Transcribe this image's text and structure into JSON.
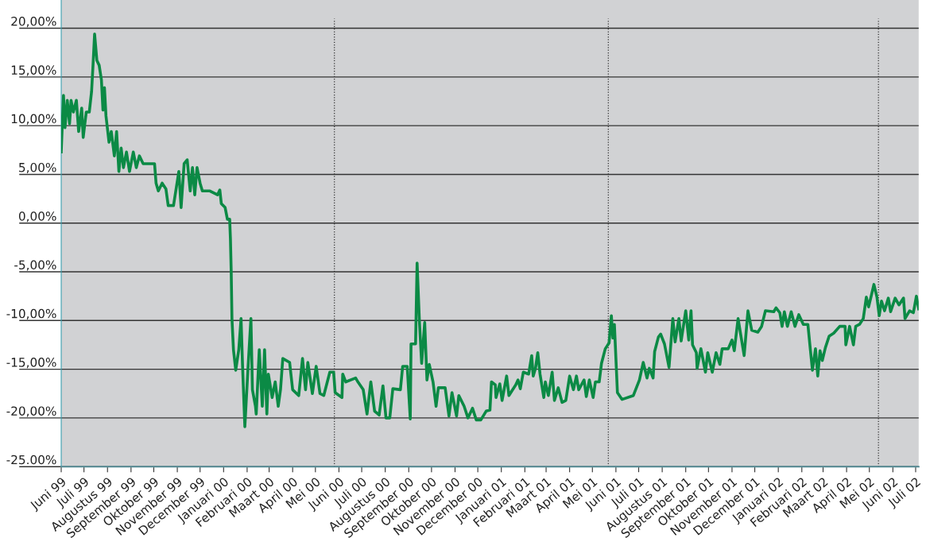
{
  "chart_data": {
    "type": "line",
    "xlim": [
      "1999-06-01",
      "2002-07-05"
    ],
    "ylim": [
      -25,
      22.9
    ],
    "xticks": [
      {
        "value": "1999-06-01",
        "label": "Juni 99"
      },
      {
        "value": "1999-07-01",
        "label": "Juli 99"
      },
      {
        "value": "1999-08-01",
        "label": "Augustus 99"
      },
      {
        "value": "1999-09-01",
        "label": "September 99"
      },
      {
        "value": "1999-10-01",
        "label": "Oktober 99"
      },
      {
        "value": "1999-11-01",
        "label": "November 99"
      },
      {
        "value": "1999-12-01",
        "label": "December 99"
      },
      {
        "value": "2000-01-01",
        "label": "Januari 00"
      },
      {
        "value": "2000-02-01",
        "label": "Februari 00"
      },
      {
        "value": "2000-03-01",
        "label": "Maart 00"
      },
      {
        "value": "2000-04-01",
        "label": "April 00"
      },
      {
        "value": "2000-05-01",
        "label": "Mei 00"
      },
      {
        "value": "2000-06-01",
        "label": "Juni 00"
      },
      {
        "value": "2000-07-01",
        "label": "Juli 00"
      },
      {
        "value": "2000-08-01",
        "label": "Augustus 00"
      },
      {
        "value": "2000-09-01",
        "label": "September 00"
      },
      {
        "value": "2000-10-01",
        "label": "Oktober 00"
      },
      {
        "value": "2000-11-01",
        "label": "November 00"
      },
      {
        "value": "2000-12-01",
        "label": "December 00"
      },
      {
        "value": "2001-01-01",
        "label": "Januari 01"
      },
      {
        "value": "2001-02-01",
        "label": "Februari 01"
      },
      {
        "value": "2001-03-01",
        "label": "Maart 01"
      },
      {
        "value": "2001-04-01",
        "label": "April 01"
      },
      {
        "value": "2001-05-01",
        "label": "Mei 01"
      },
      {
        "value": "2001-06-01",
        "label": "Juni 01"
      },
      {
        "value": "2001-07-01",
        "label": "Juli 01"
      },
      {
        "value": "2001-08-01",
        "label": "Augustus 01"
      },
      {
        "value": "2001-09-01",
        "label": "September 01"
      },
      {
        "value": "2001-10-01",
        "label": "Oktober 01"
      },
      {
        "value": "2001-11-01",
        "label": "November 01"
      },
      {
        "value": "2001-12-01",
        "label": "December 01"
      },
      {
        "value": "2002-01-01",
        "label": "Januari 02"
      },
      {
        "value": "2002-02-01",
        "label": "Februari 02"
      },
      {
        "value": "2002-03-01",
        "label": "Maart 02"
      },
      {
        "value": "2002-04-01",
        "label": "April 02"
      },
      {
        "value": "2002-05-01",
        "label": "Mei 02"
      },
      {
        "value": "2002-06-01",
        "label": "Juni 02"
      },
      {
        "value": "2002-07-01",
        "label": "Juli 02"
      }
    ],
    "yticks": [
      {
        "value": 20,
        "label": "20,00%"
      },
      {
        "value": 15,
        "label": "15,00%"
      },
      {
        "value": 10,
        "label": "10,00%"
      },
      {
        "value": 5,
        "label": "5,00%"
      },
      {
        "value": 0,
        "label": "0,00%"
      },
      {
        "value": -5,
        "label": "-5,00%"
      },
      {
        "value": -10,
        "label": "-10,00%"
      },
      {
        "value": -15,
        "label": "-15,00%"
      },
      {
        "value": -20,
        "label": "-20,00%"
      },
      {
        "value": -25,
        "label": "-25.00%"
      }
    ],
    "grid": "y",
    "marker": "none",
    "line_style": "solid",
    "ref_lines": [
      {
        "axis": "x",
        "value": "2000-05-26",
        "color": "#333333",
        "line_style": "dotted"
      },
      {
        "axis": "x",
        "value": "2001-05-22",
        "color": "#333333",
        "line_style": "dotted"
      },
      {
        "axis": "x",
        "value": "2002-05-13",
        "color": "#333333",
        "line_style": "dotted"
      }
    ],
    "series": [
      {
        "color": "#0b8a45",
        "x": [
          "1999-06-01",
          "1999-06-04",
          "1999-06-06",
          "1999-06-09",
          "1999-06-12",
          "1999-06-14",
          "1999-06-17",
          "1999-06-21",
          "1999-06-24",
          "1999-06-28",
          "1999-06-30",
          "1999-07-04",
          "1999-07-08",
          "1999-07-11",
          "1999-07-13",
          "1999-07-15",
          "1999-07-18",
          "1999-07-21",
          "1999-07-24",
          "1999-07-26",
          "1999-07-28",
          "1999-07-30",
          "1999-08-03",
          "1999-08-06",
          "1999-08-10",
          "1999-08-13",
          "1999-08-16",
          "1999-08-19",
          "1999-08-22",
          "1999-08-26",
          "1999-08-30",
          "1999-09-04",
          "1999-09-08",
          "1999-09-12",
          "1999-09-17",
          "1999-10-02",
          "1999-10-04",
          "1999-10-07",
          "1999-10-12",
          "1999-10-17",
          "1999-10-20",
          "1999-10-27",
          "1999-11-03",
          "1999-11-06",
          "1999-11-10",
          "1999-11-14",
          "1999-11-18",
          "1999-11-21",
          "1999-11-24",
          "1999-11-27",
          "1999-12-01",
          "1999-12-04",
          "1999-12-14",
          "1999-12-24",
          "1999-12-27",
          "1999-12-29",
          "2000-01-03",
          "2000-01-06",
          "2000-01-09",
          "2000-01-10",
          "2000-01-11",
          "2000-01-12",
          "2000-01-14",
          "2000-01-17",
          "2000-01-21",
          "2000-01-24",
          "2000-01-26",
          "2000-01-29",
          "2000-02-02",
          "2000-02-06",
          "2000-02-08",
          "2000-02-12",
          "2000-02-13",
          "2000-02-17",
          "2000-02-21",
          "2000-02-24",
          "2000-02-27",
          "2000-02-29",
          "2000-03-05",
          "2000-03-09",
          "2000-03-13",
          "2000-03-16",
          "2000-03-19",
          "2000-03-28",
          "2000-04-01",
          "2000-04-09",
          "2000-04-14",
          "2000-04-18",
          "2000-04-21",
          "2000-04-27",
          "2000-05-02",
          "2000-05-07",
          "2000-05-12",
          "2000-05-20",
          "2000-05-25",
          "2000-05-27",
          "2000-06-05",
          "2000-06-06",
          "2000-06-10",
          "2000-06-23",
          "2000-06-26",
          "2000-07-03",
          "2000-07-08",
          "2000-07-13",
          "2000-07-18",
          "2000-07-24",
          "2000-07-29",
          "2000-08-02",
          "2000-08-07",
          "2000-08-11",
          "2000-08-21",
          "2000-08-24",
          "2000-08-30",
          "2000-09-03",
          "2000-09-04",
          "2000-09-10",
          "2000-09-12",
          "2000-09-15",
          "2000-09-18",
          "2000-09-22",
          "2000-09-25",
          "2000-09-28",
          "2000-10-03",
          "2000-10-07",
          "2000-10-10",
          "2000-10-19",
          "2000-10-24",
          "2000-10-28",
          "2000-11-03",
          "2000-11-06",
          "2000-11-13",
          "2000-11-18",
          "2000-11-24",
          "2000-11-29",
          "2000-12-05",
          "2000-12-12",
          "2000-12-17",
          "2000-12-19",
          "2000-12-24",
          "2000-12-25",
          "2000-12-30",
          "2001-01-02",
          "2001-01-08",
          "2001-01-11",
          "2001-01-20",
          "2001-01-23",
          "2001-01-26",
          "2001-01-30",
          "2001-02-06",
          "2001-02-10",
          "2001-02-12",
          "2001-02-15",
          "2001-02-18",
          "2001-02-21",
          "2001-02-26",
          "2001-02-28",
          "2001-03-04",
          "2001-03-09",
          "2001-03-12",
          "2001-03-17",
          "2001-03-22",
          "2001-03-27",
          "2001-04-01",
          "2001-04-06",
          "2001-04-10",
          "2001-04-13",
          "2001-04-20",
          "2001-04-23",
          "2001-04-27",
          "2001-05-02",
          "2001-05-05",
          "2001-05-10",
          "2001-05-13",
          "2001-05-18",
          "2001-05-23",
          "2001-05-26",
          "2001-05-28",
          "2001-05-30",
          "2001-06-03",
          "2001-06-09",
          "2001-06-24",
          "2001-07-02",
          "2001-07-07",
          "2001-07-12",
          "2001-07-15",
          "2001-07-20",
          "2001-07-22",
          "2001-07-27",
          "2001-07-30",
          "2001-08-04",
          "2001-08-10",
          "2001-08-15",
          "2001-08-18",
          "2001-08-23",
          "2001-08-26",
          "2001-09-01",
          "2001-09-05",
          "2001-09-08",
          "2001-09-10",
          "2001-09-15",
          "2001-09-16",
          "2001-09-21",
          "2001-09-27",
          "2001-09-30",
          "2001-10-06",
          "2001-10-11",
          "2001-10-16",
          "2001-10-19",
          "2001-10-27",
          "2001-11-01",
          "2001-11-04",
          "2001-11-09",
          "2001-11-17",
          "2001-11-22",
          "2001-11-27",
          "2001-12-05",
          "2001-12-10",
          "2001-12-15",
          "2001-12-26",
          "2001-12-29",
          "2002-01-03",
          "2002-01-06",
          "2002-01-09",
          "2002-01-13",
          "2002-01-18",
          "2002-01-23",
          "2002-01-28",
          "2002-02-03",
          "2002-02-09",
          "2002-02-12",
          "2002-02-15",
          "2002-02-19",
          "2002-02-22",
          "2002-02-25",
          "2002-02-28",
          "2002-03-04",
          "2002-03-09",
          "2002-03-15",
          "2002-03-23",
          "2002-03-30",
          "2002-03-31",
          "2002-04-05",
          "2002-04-10",
          "2002-04-13",
          "2002-04-18",
          "2002-04-23",
          "2002-04-27",
          "2002-04-30",
          "2002-05-04",
          "2002-05-07",
          "2002-05-11",
          "2002-05-14",
          "2002-05-17",
          "2002-05-21",
          "2002-05-26",
          "2002-05-29",
          "2002-06-04",
          "2002-06-09",
          "2002-06-15",
          "2002-06-17",
          "2002-06-23",
          "2002-06-28",
          "2002-07-02",
          "2002-07-05"
        ],
        "values": [
          7.3,
          13.1,
          9.8,
          12.6,
          10.2,
          12.6,
          11.4,
          12.6,
          9.4,
          11.8,
          8.8,
          11.4,
          11.4,
          13.5,
          16.3,
          19.4,
          16.7,
          16.2,
          14.7,
          11.6,
          13.9,
          11.0,
          8.3,
          9.4,
          6.9,
          9.4,
          5.3,
          7.7,
          5.7,
          7.3,
          5.3,
          7.3,
          5.7,
          6.9,
          6.1,
          6.1,
          4.1,
          3.3,
          4.1,
          3.5,
          1.8,
          1.8,
          5.3,
          1.6,
          6.1,
          6.5,
          3.3,
          5.7,
          2.9,
          5.7,
          4.1,
          3.3,
          3.3,
          2.9,
          3.4,
          2.0,
          1.6,
          0.4,
          0.4,
          -1.6,
          -4.9,
          -9.8,
          -13.0,
          -15.1,
          -13.0,
          -9.8,
          -14.7,
          -20.9,
          -15.1,
          -9.8,
          -17.1,
          -18.8,
          -19.6,
          -13.0,
          -18.8,
          -13.0,
          -19.6,
          -15.5,
          -17.9,
          -16.3,
          -18.8,
          -17.1,
          -13.9,
          -14.3,
          -17.1,
          -17.7,
          -13.9,
          -17.1,
          -14.3,
          -17.5,
          -14.7,
          -17.5,
          -17.7,
          -15.3,
          -15.3,
          -17.4,
          -17.9,
          -15.5,
          -16.3,
          -15.9,
          -16.3,
          -17.1,
          -19.6,
          -16.3,
          -19.3,
          -19.7,
          -16.7,
          -20.0,
          -20.0,
          -17.0,
          -17.1,
          -14.7,
          -14.7,
          -20.1,
          -12.4,
          -12.4,
          -4.1,
          -10.0,
          -14.4,
          -10.2,
          -16.1,
          -14.5,
          -16.3,
          -18.8,
          -16.9,
          -16.9,
          -19.8,
          -17.4,
          -19.8,
          -17.7,
          -18.8,
          -20.0,
          -19.0,
          -20.2,
          -20.2,
          -19.3,
          -19.2,
          -16.3,
          -16.6,
          -17.9,
          -16.5,
          -18.2,
          -15.7,
          -17.7,
          -16.6,
          -16.1,
          -17.0,
          -15.3,
          -15.5,
          -13.6,
          -15.7,
          -14.9,
          -13.3,
          -15.5,
          -17.9,
          -16.3,
          -17.7,
          -15.3,
          -18.2,
          -16.9,
          -18.4,
          -18.2,
          -15.7,
          -17.1,
          -15.7,
          -17.1,
          -16.1,
          -17.8,
          -16.1,
          -17.9,
          -16.3,
          -16.3,
          -14.4,
          -12.9,
          -12.3,
          -9.5,
          -11.8,
          -10.4,
          -17.4,
          -18.1,
          -17.7,
          -16.1,
          -14.3,
          -15.9,
          -14.9,
          -15.9,
          -13.2,
          -11.7,
          -11.4,
          -12.4,
          -14.8,
          -9.8,
          -12.2,
          -9.8,
          -12.1,
          -9.0,
          -12.0,
          -9.0,
          -12.5,
          -13.3,
          -14.9,
          -12.9,
          -15.3,
          -13.3,
          -15.3,
          -13.3,
          -14.5,
          -12.9,
          -12.9,
          -12.0,
          -13.1,
          -9.8,
          -13.6,
          -9.0,
          -11.0,
          -11.2,
          -10.6,
          -9.0,
          -9.1,
          -8.7,
          -9.2,
          -10.6,
          -9.1,
          -10.6,
          -9.1,
          -10.6,
          -9.4,
          -10.4,
          -10.4,
          -12.8,
          -15.1,
          -12.9,
          -15.7,
          -13.1,
          -14.1,
          -12.8,
          -11.6,
          -11.3,
          -10.6,
          -10.6,
          -12.5,
          -10.6,
          -12.5,
          -10.6,
          -10.4,
          -9.8,
          -7.6,
          -8.6,
          -7.3,
          -6.3,
          -7.6,
          -9.5,
          -8.0,
          -9.0,
          -7.7,
          -9.1,
          -7.7,
          -8.4,
          -7.7,
          -9.8,
          -9.0,
          -9.2,
          -7.5,
          -8.8
        ]
      }
    ]
  }
}
